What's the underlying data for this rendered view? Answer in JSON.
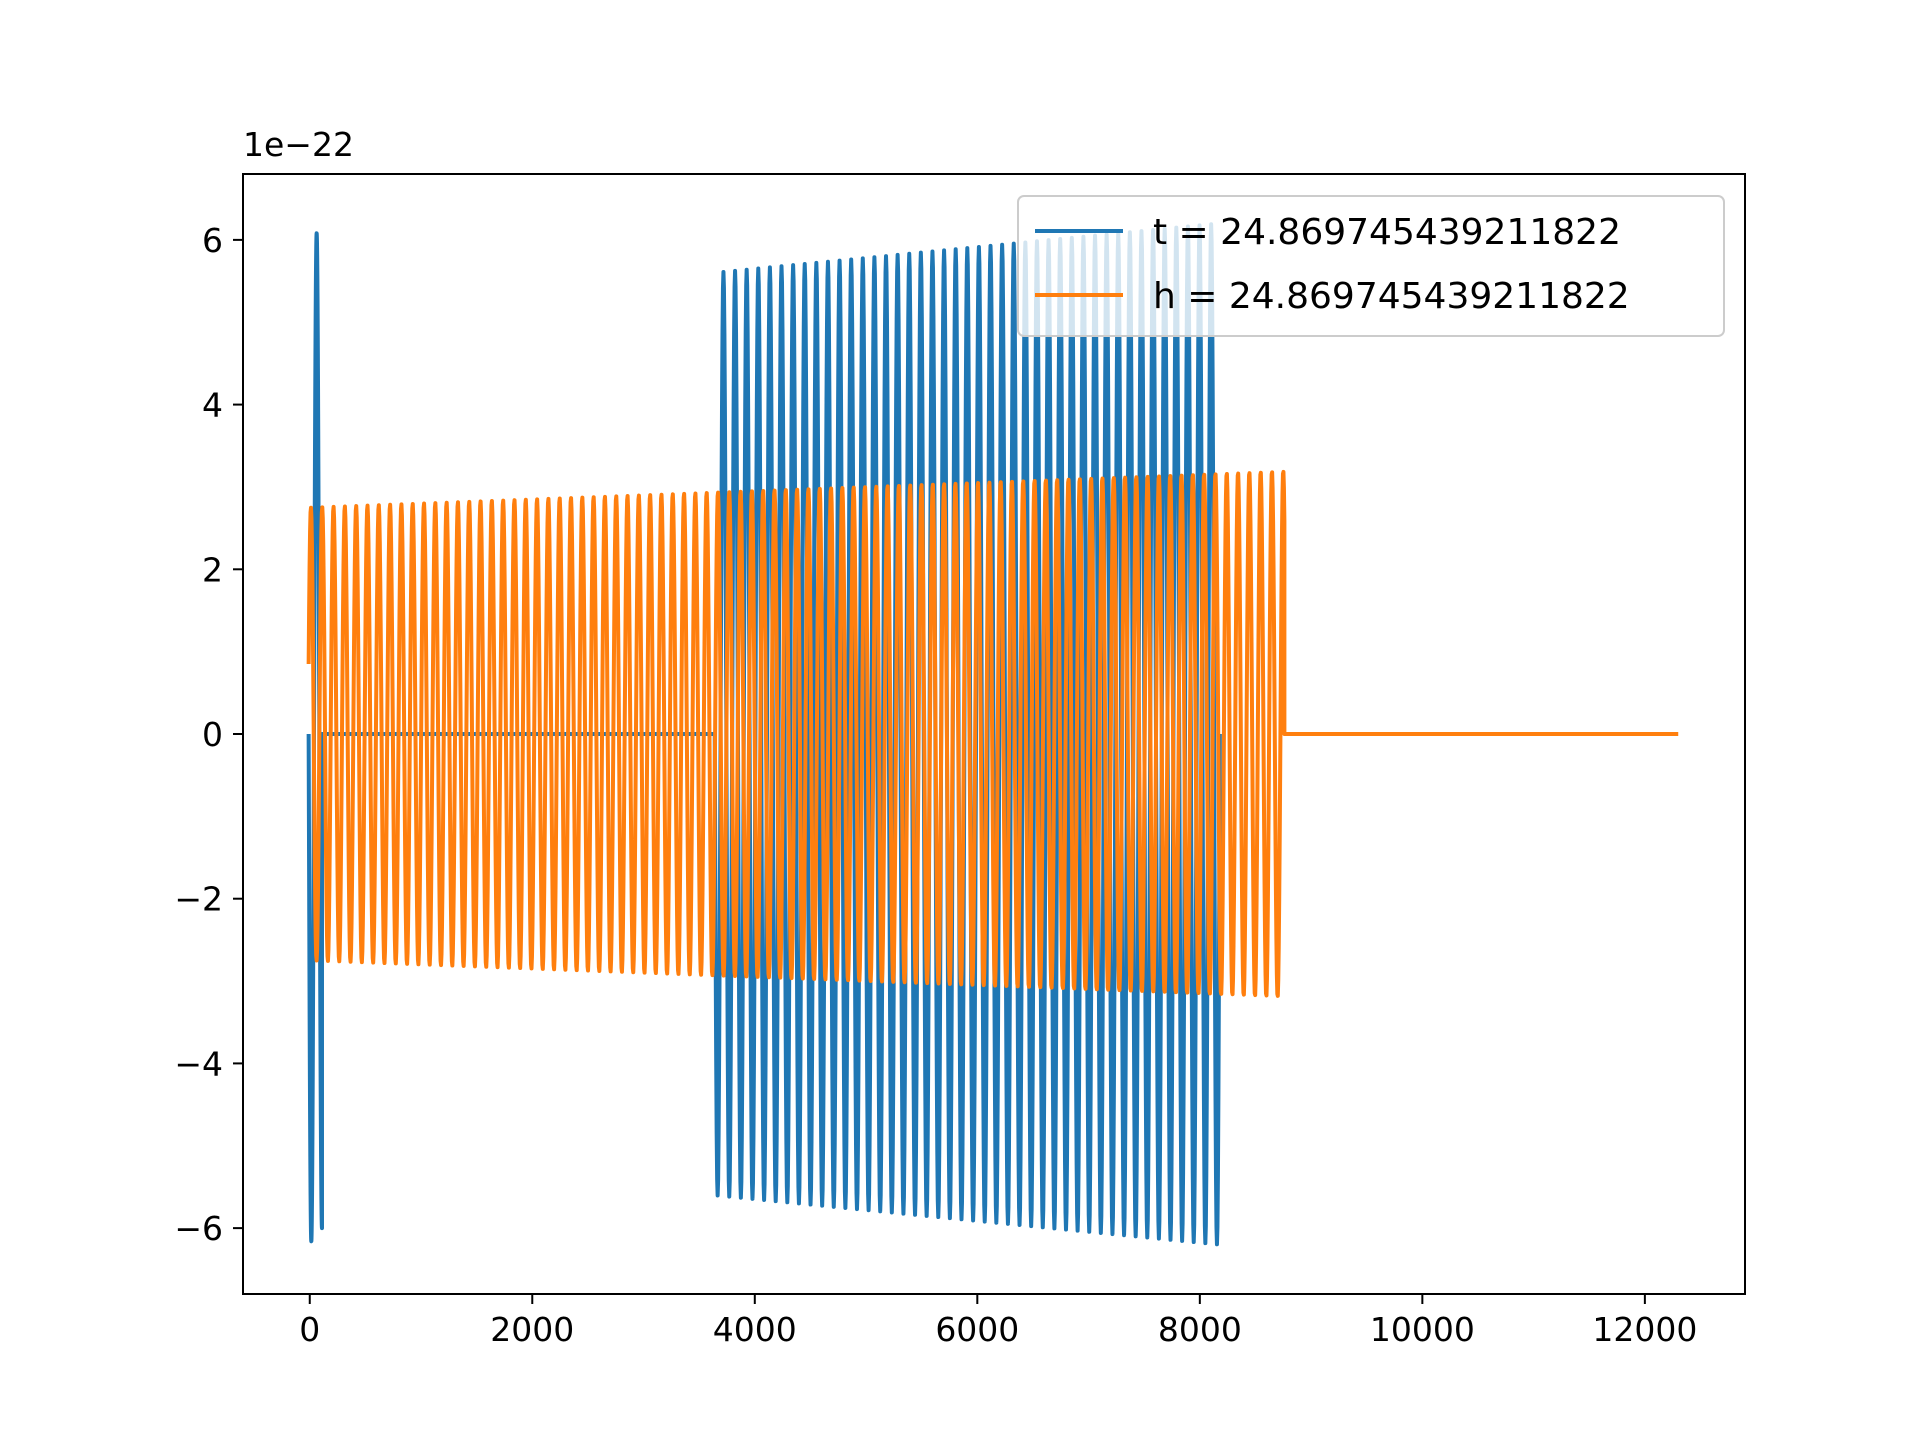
{
  "chart_data": {
    "type": "line",
    "title": "",
    "xlabel": "",
    "ylabel": "",
    "y_offset_label": "1e−22",
    "xlim": [
      -600,
      12900
    ],
    "ylim": [
      -6.8,
      6.8
    ],
    "x_ticks": [
      0,
      2000,
      4000,
      6000,
      8000,
      10000,
      12000
    ],
    "x_tick_labels": [
      "0",
      "2000",
      "4000",
      "6000",
      "8000",
      "10000",
      "12000"
    ],
    "y_ticks": [
      -6,
      -4,
      -2,
      0,
      2,
      4,
      6
    ],
    "y_tick_labels": [
      "−6",
      "−4",
      "−2",
      "0",
      "2",
      "4",
      "6"
    ],
    "grid": false,
    "legend_position": "top-right",
    "series": [
      {
        "name": "t = 24.869745439211822",
        "color": "#1f77b4",
        "segments": [
          {
            "x_start": -10,
            "x_end": 110,
            "cycles": 1.25,
            "phase": 0.25,
            "amp_start": 6.2,
            "amp_end": 6.0
          },
          {
            "x_start": 110,
            "x_end": 3640,
            "cycles": 0,
            "phase": 0,
            "amp_start": 0,
            "amp_end": 0
          },
          {
            "x_start": 3640,
            "x_end": 8180,
            "cycles": 43.5,
            "phase": 0.25,
            "amp_start": 5.6,
            "amp_end": 6.2
          }
        ]
      },
      {
        "name": "h = 24.869745439211822",
        "color": "#ff7f0e",
        "segments": [
          {
            "x_start": -10,
            "x_end": 8760,
            "cycles": 86.3,
            "phase": 0.8,
            "amp_start": 2.75,
            "amp_end": 3.2
          },
          {
            "x_start": 8760,
            "x_end": 12300,
            "cycles": 0,
            "phase": 0,
            "amp_start": 0,
            "amp_end": 0
          }
        ]
      }
    ]
  }
}
